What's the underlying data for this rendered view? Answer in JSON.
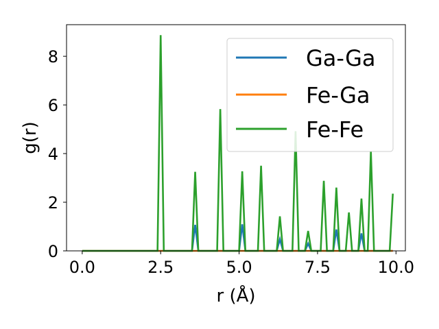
{
  "chart_data": {
    "type": "line",
    "xlabel": "r (Å)",
    "ylabel": "g(r)",
    "xlim": [
      -0.5,
      10.3
    ],
    "ylim": [
      0,
      9.3
    ],
    "xticks": [
      0.0,
      2.5,
      5.0,
      7.5,
      10.0
    ],
    "xtick_labels": [
      "0.0",
      "2.5",
      "5.0",
      "7.5",
      "10.0"
    ],
    "yticks": [
      0,
      2,
      4,
      6,
      8
    ],
    "ytick_labels": [
      "0",
      "2",
      "4",
      "6",
      "8"
    ],
    "grid": false,
    "legend_position": "top-right",
    "series": [
      {
        "name": "Ga-Ga",
        "color": "#1f77b4",
        "x": [
          0,
          3.5,
          3.6,
          3.7,
          5.0,
          5.1,
          5.2,
          6.2,
          6.3,
          6.4,
          7.1,
          7.2,
          7.3,
          8.0,
          8.1,
          8.2,
          8.8,
          8.9,
          9.0,
          9.9
        ],
        "y": [
          0,
          0,
          1.07,
          0,
          0,
          1.09,
          0,
          0,
          0.48,
          0,
          0,
          0.3,
          0,
          0,
          0.88,
          0,
          0,
          0.72,
          0,
          0
        ]
      },
      {
        "name": "Fe-Ga",
        "color": "#ff7f0e",
        "x": [
          0,
          9.9
        ],
        "y": [
          0,
          0
        ]
      },
      {
        "name": "Fe-Fe",
        "color": "#2ca02c",
        "x": [
          0,
          2.4,
          2.5,
          2.6,
          3.5,
          3.6,
          3.7,
          4.3,
          4.4,
          4.5,
          5.0,
          5.1,
          5.2,
          5.6,
          5.7,
          5.8,
          6.2,
          6.3,
          6.4,
          6.7,
          6.8,
          6.9,
          7.1,
          7.2,
          7.3,
          7.6,
          7.7,
          7.8,
          8.0,
          8.1,
          8.2,
          8.4,
          8.5,
          8.6,
          8.8,
          8.9,
          9.0,
          9.1,
          9.2,
          9.3,
          9.8,
          9.9
        ],
        "y": [
          0,
          0,
          8.87,
          0,
          0,
          3.25,
          0,
          0,
          5.83,
          0,
          0,
          3.27,
          0,
          0,
          3.5,
          0,
          0,
          1.42,
          0,
          0,
          4.92,
          0,
          0,
          0.82,
          0,
          0,
          2.88,
          0,
          0,
          2.6,
          0,
          0,
          1.58,
          0,
          0,
          2.15,
          0,
          0,
          4.1,
          0,
          0,
          2.35
        ]
      }
    ]
  }
}
